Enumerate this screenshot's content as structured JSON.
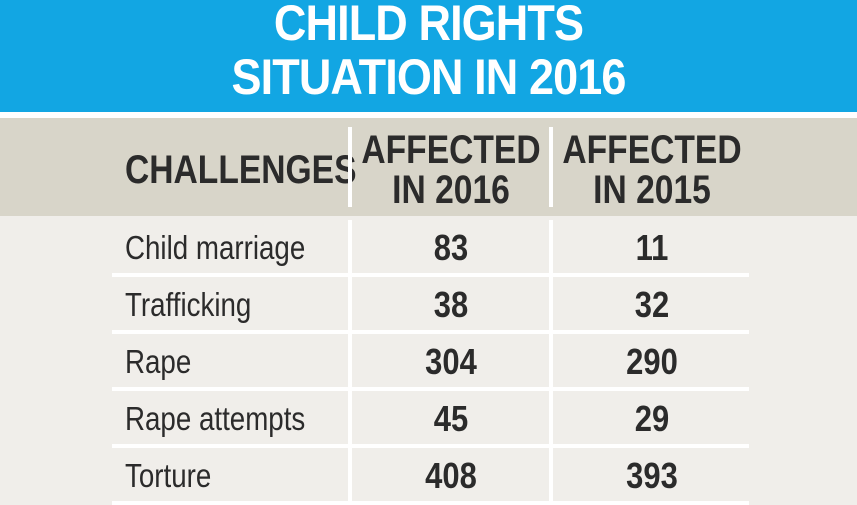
{
  "title": {
    "line1": "CHILD RIGHTS",
    "line2": "SITUATION IN 2016"
  },
  "colors": {
    "title_bg": "#12a6e3",
    "header_bg": "#d8d5c9",
    "body_bg": "#f0eeea",
    "text": "#2b2b2b"
  },
  "chart_data": {
    "type": "table",
    "columns": [
      "CHALLENGES",
      "AFFECTED IN 2016",
      "AFFECTED IN 2015"
    ],
    "header": {
      "challenges": "CHALLENGES",
      "col2016_line1": "AFFECTED",
      "col2016_line2": "IN 2016",
      "col2015_line1": "AFFECTED",
      "col2015_line2": "IN 2015"
    },
    "rows": [
      {
        "challenge": "Child marriage",
        "affected_2016": "83",
        "affected_2015": "11"
      },
      {
        "challenge": "Trafficking",
        "affected_2016": "38",
        "affected_2015": "32"
      },
      {
        "challenge": "Rape",
        "affected_2016": "304",
        "affected_2015": "290"
      },
      {
        "challenge": "Rape attempts",
        "affected_2016": "45",
        "affected_2015": "29"
      },
      {
        "challenge": "Torture",
        "affected_2016": "408",
        "affected_2015": "393"
      }
    ]
  }
}
